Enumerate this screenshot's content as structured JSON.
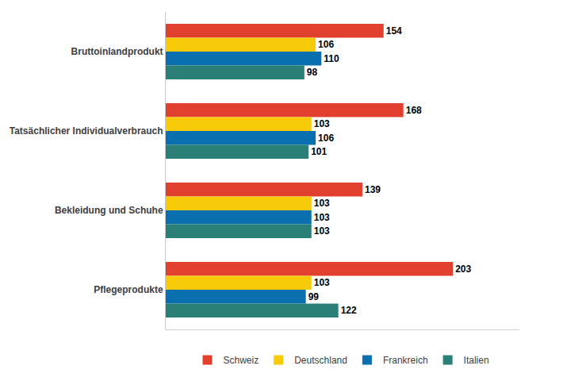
{
  "chart_data": {
    "type": "bar",
    "orientation": "horizontal",
    "categories": [
      "Bruttoinlandprodukt",
      "Tatsächlicher Individualverbrauch",
      "Bekleidung und Schuhe",
      "Pflegeprodukte"
    ],
    "series": [
      {
        "name": "Schweiz",
        "color": "#e2402f",
        "values": [
          154,
          168,
          139,
          203
        ]
      },
      {
        "name": "Deutschland",
        "color": "#f7cb0a",
        "values": [
          106,
          103,
          103,
          103
        ]
      },
      {
        "name": "Frankreich",
        "color": "#0a6fae",
        "values": [
          110,
          106,
          103,
          99
        ]
      },
      {
        "name": "Italien",
        "color": "#2a7f76",
        "values": [
          98,
          101,
          103,
          122
        ]
      }
    ],
    "xlim": [
      0,
      250
    ],
    "xticks": [],
    "data_labels": true,
    "tick_labels": "y",
    "grid": false,
    "legend": "bottom"
  }
}
